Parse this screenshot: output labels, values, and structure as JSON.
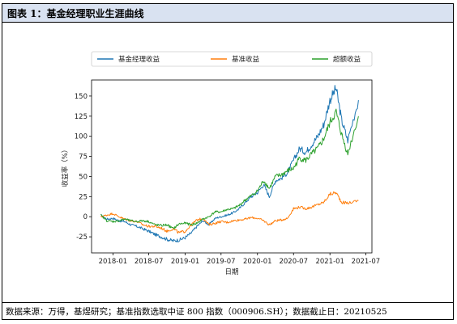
{
  "header": {
    "title": "图表 1：基金经理职业生涯曲线"
  },
  "footer": {
    "source": "数据来源：万得，基煜研究；基准指数选取中证 800 指数（000906.SH）；数据截止日：20210525"
  },
  "colors": {
    "fund": "#1f77b4",
    "benchmark": "#ff7f0e",
    "excess": "#2ca02c",
    "header_bg": "#d9e2f1"
  },
  "chart_data": {
    "type": "line",
    "title": "",
    "xlabel": "日期",
    "ylabel": "收益率（%）",
    "xlim": [
      "2017-09-15",
      "2021-08-01"
    ],
    "ylim": [
      -45,
      170
    ],
    "yticks": [
      -25,
      0,
      25,
      50,
      75,
      100,
      125,
      150
    ],
    "xticks": [
      "2018-01",
      "2018-07",
      "2019-01",
      "2019-07",
      "2020-01",
      "2020-07",
      "2021-01",
      "2021-07"
    ],
    "grid": false,
    "legend_position": "top",
    "series": [
      {
        "name": "基金经理收益",
        "color": "#1f77b4",
        "dates": [
          "2017-11-01",
          "2017-12-01",
          "2018-01-01",
          "2018-02-01",
          "2018-03-01",
          "2018-04-01",
          "2018-05-01",
          "2018-06-01",
          "2018-07-01",
          "2018-08-01",
          "2018-09-01",
          "2018-10-01",
          "2018-11-01",
          "2018-12-01",
          "2019-01-01",
          "2019-02-01",
          "2019-03-01",
          "2019-04-01",
          "2019-05-01",
          "2019-06-01",
          "2019-07-01",
          "2019-08-01",
          "2019-09-01",
          "2019-10-01",
          "2019-11-01",
          "2019-12-01",
          "2020-01-01",
          "2020-02-01",
          "2020-03-01",
          "2020-04-01",
          "2020-05-01",
          "2020-06-01",
          "2020-07-01",
          "2020-08-01",
          "2020-09-01",
          "2020-10-01",
          "2020-11-01",
          "2020-12-01",
          "2021-01-01",
          "2021-02-01",
          "2021-03-01",
          "2021-04-01",
          "2021-05-25"
        ],
        "values": [
          2,
          -3,
          -2,
          -5,
          -6,
          -10,
          -12,
          -15,
          -18,
          -22,
          -25,
          -28,
          -30,
          -29,
          -26,
          -20,
          -12,
          -5,
          -10,
          -2,
          0,
          2,
          5,
          10,
          18,
          25,
          30,
          40,
          25,
          45,
          48,
          55,
          70,
          85,
          80,
          90,
          100,
          115,
          145,
          160,
          120,
          95,
          145
        ]
      },
      {
        "name": "基准收益",
        "color": "#ff7f0e",
        "dates": [
          "2017-11-01",
          "2017-12-01",
          "2018-01-01",
          "2018-02-01",
          "2018-03-01",
          "2018-04-01",
          "2018-05-01",
          "2018-06-01",
          "2018-07-01",
          "2018-08-01",
          "2018-09-01",
          "2018-10-01",
          "2018-11-01",
          "2018-12-01",
          "2019-01-01",
          "2019-02-01",
          "2019-03-01",
          "2019-04-01",
          "2019-05-01",
          "2019-06-01",
          "2019-07-01",
          "2019-08-01",
          "2019-09-01",
          "2019-10-01",
          "2019-11-01",
          "2019-12-01",
          "2020-01-01",
          "2020-02-01",
          "2020-03-01",
          "2020-04-01",
          "2020-05-01",
          "2020-06-01",
          "2020-07-01",
          "2020-08-01",
          "2020-09-01",
          "2020-10-01",
          "2020-11-01",
          "2020-12-01",
          "2021-01-01",
          "2021-02-01",
          "2021-03-01",
          "2021-04-01",
          "2021-05-25"
        ],
        "values": [
          0,
          2,
          4,
          0,
          -3,
          -5,
          -6,
          -10,
          -12,
          -12,
          -14,
          -18,
          -15,
          -20,
          -18,
          -10,
          -4,
          -2,
          -10,
          -8,
          -6,
          -7,
          -5,
          -4,
          -3,
          -1,
          -2,
          -5,
          -10,
          -5,
          -4,
          -2,
          10,
          12,
          10,
          12,
          15,
          18,
          28,
          30,
          18,
          17,
          20
        ]
      },
      {
        "name": "超额收益",
        "color": "#2ca02c",
        "dates": [
          "2017-11-01",
          "2017-12-01",
          "2018-01-01",
          "2018-02-01",
          "2018-03-01",
          "2018-04-01",
          "2018-05-01",
          "2018-06-01",
          "2018-07-01",
          "2018-08-01",
          "2018-09-01",
          "2018-10-01",
          "2018-11-01",
          "2018-12-01",
          "2019-01-01",
          "2019-02-01",
          "2019-03-01",
          "2019-04-01",
          "2019-05-01",
          "2019-06-01",
          "2019-07-01",
          "2019-08-01",
          "2019-09-01",
          "2019-10-01",
          "2019-11-01",
          "2019-12-01",
          "2020-01-01",
          "2020-02-01",
          "2020-03-01",
          "2020-04-01",
          "2020-05-01",
          "2020-06-01",
          "2020-07-01",
          "2020-08-01",
          "2020-09-01",
          "2020-10-01",
          "2020-11-01",
          "2020-12-01",
          "2021-01-01",
          "2021-02-01",
          "2021-03-01",
          "2021-04-01",
          "2021-05-25"
        ],
        "values": [
          2,
          -5,
          -6,
          -5,
          -3,
          -5,
          -6,
          -5,
          -6,
          -10,
          -11,
          -10,
          -15,
          -9,
          -8,
          -10,
          -8,
          -3,
          0,
          6,
          6,
          9,
          10,
          14,
          21,
          26,
          32,
          45,
          35,
          50,
          52,
          57,
          60,
          73,
          70,
          78,
          85,
          97,
          117,
          130,
          102,
          78,
          125
        ]
      }
    ]
  }
}
